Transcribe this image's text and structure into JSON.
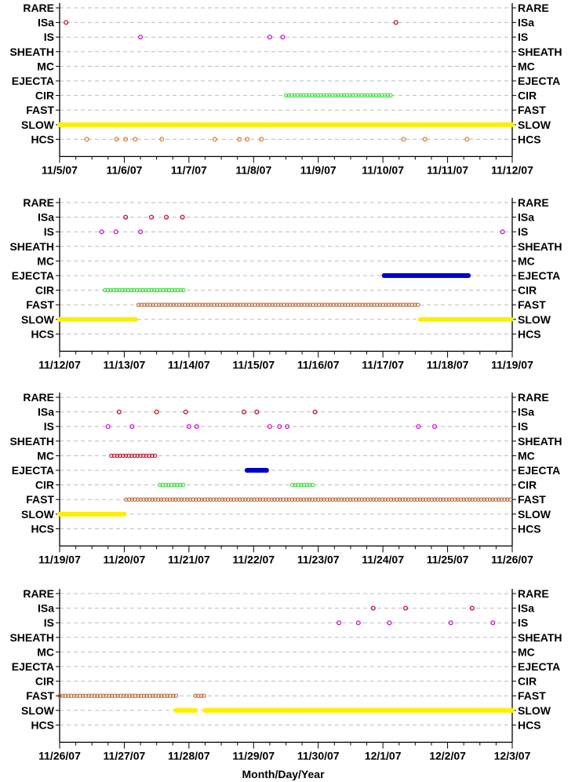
{
  "chart_data": {
    "type": "scatter",
    "xlabel": "Month/Day/Year",
    "categories": [
      "RARE",
      "ISa",
      "IS",
      "SHEATH",
      "MC",
      "EJECTA",
      "CIR",
      "FAST",
      "SLOW",
      "HCS"
    ],
    "colors": {
      "ISa": "#c0001a",
      "IS": "#cc00cc",
      "MC": "#c0001a",
      "EJECTA": "#0000cc",
      "CIR": "#22dd22",
      "FAST": "#b8602a",
      "SLOW": "#ffee00",
      "HCS": "#e07820"
    },
    "panels": [
      {
        "x_tick_labels": [
          "11/5/07",
          "11/6/07",
          "11/7/07",
          "11/8/07",
          "11/9/07",
          "11/10/07",
          "11/11/07",
          "11/12/07"
        ],
        "xlim": [
          0,
          7
        ],
        "points": {
          "ISa": [
            0.1,
            5.2
          ],
          "IS": [
            1.25,
            3.25,
            3.45
          ],
          "HCS": [
            0.42,
            0.88,
            1.02,
            1.17,
            1.58,
            2.4,
            2.78,
            2.9,
            3.12,
            5.32,
            5.65,
            6.3
          ]
        },
        "ranges": {
          "CIR": [
            [
              3.5,
              5.15
            ]
          ],
          "SLOW": [
            [
              0,
              7
            ]
          ]
        }
      },
      {
        "x_tick_labels": [
          "11/12/07",
          "11/13/07",
          "11/14/07",
          "11/15/07",
          "11/16/07",
          "11/17/07",
          "11/18/07",
          "11/19/07"
        ],
        "xlim": [
          0,
          7
        ],
        "points": {
          "ISa": [
            1.02,
            1.42,
            1.65,
            1.9
          ],
          "IS": [
            0.65,
            0.87,
            1.25,
            6.85
          ]
        },
        "ranges": {
          "EJECTA": [
            [
              5.02,
              6.33
            ]
          ],
          "CIR": [
            [
              0.7,
              1.92
            ]
          ],
          "FAST": [
            [
              1.22,
              5.55
            ]
          ],
          "SLOW": [
            [
              0,
              1.18
            ],
            [
              5.58,
              7
            ]
          ]
        }
      },
      {
        "x_tick_labels": [
          "11/19/07",
          "11/20/07",
          "11/21/07",
          "11/22/07",
          "11/23/07",
          "11/24/07",
          "11/25/07",
          "11/26/07"
        ],
        "xlim": [
          0,
          7
        ],
        "points": {
          "ISa": [
            0.92,
            1.5,
            1.95,
            2.85,
            3.05,
            3.95
          ],
          "IS": [
            0.75,
            1.12,
            2.0,
            2.12,
            3.25,
            3.4,
            3.52,
            5.55,
            5.8
          ]
        },
        "ranges": {
          "MC": [
            [
              0.8,
              1.5
            ]
          ],
          "EJECTA": [
            [
              2.9,
              3.2
            ]
          ],
          "CIR": [
            [
              1.55,
              1.95
            ],
            [
              3.6,
              3.95
            ]
          ],
          "FAST": [
            [
              1.03,
              7
            ]
          ],
          "SLOW": [
            [
              0,
              1.0
            ]
          ]
        }
      },
      {
        "x_tick_labels": [
          "11/26/07",
          "11/27/07",
          "11/28/07",
          "11/29/07",
          "11/30/07",
          "12/1/07",
          "12/2/07",
          "12/3/07"
        ],
        "xlim": [
          0,
          7
        ],
        "points": {
          "ISa": [
            4.85,
            5.35,
            6.38
          ],
          "IS": [
            4.32,
            4.62,
            5.1,
            6.05,
            6.7
          ]
        },
        "ranges": {
          "FAST": [
            [
              0,
              1.8
            ],
            [
              2.1,
              2.25
            ]
          ],
          "SLOW": [
            [
              1.8,
              2.1
            ],
            [
              2.25,
              7
            ]
          ]
        }
      }
    ]
  }
}
